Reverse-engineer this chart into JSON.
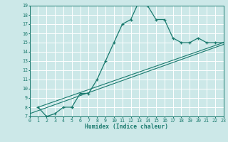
{
  "line1_x": [
    1,
    2,
    3,
    4,
    5,
    5,
    6,
    7,
    8,
    9,
    10,
    11,
    12,
    13,
    14,
    15,
    16,
    17,
    18,
    19,
    20,
    21,
    22,
    23
  ],
  "line1_y": [
    8.0,
    7.0,
    7.3,
    8.0,
    8.0,
    8.0,
    9.5,
    9.5,
    11.0,
    13.0,
    15.0,
    17.0,
    17.5,
    19.5,
    19.0,
    17.5,
    17.5,
    15.5,
    15.0,
    15.0,
    15.5,
    15.0,
    15.0,
    15.0
  ],
  "line2_x": [
    1,
    23
  ],
  "line2_y": [
    8.0,
    15.0
  ],
  "line3_x": [
    0,
    23
  ],
  "line3_y": [
    7.3,
    14.8
  ],
  "line_color": "#1a7a6e",
  "bg_color": "#cce8e8",
  "grid_color": "#ffffff",
  "xlabel": "Humidex (Indice chaleur)",
  "xlim": [
    0,
    23
  ],
  "ylim": [
    7,
    19
  ],
  "xticks": [
    0,
    1,
    2,
    3,
    4,
    5,
    6,
    7,
    8,
    9,
    10,
    11,
    12,
    13,
    14,
    15,
    16,
    17,
    18,
    19,
    20,
    21,
    22,
    23
  ],
  "xtick_labels": [
    "0",
    "1",
    "2",
    "3",
    "4",
    "5",
    "6",
    "7",
    "8",
    "9",
    "10",
    "11",
    "12",
    "13",
    "14",
    "15",
    "16",
    "17",
    "18",
    "19",
    "20",
    "21",
    "22",
    "23"
  ],
  "yticks": [
    7,
    8,
    9,
    10,
    11,
    12,
    13,
    14,
    15,
    16,
    17,
    18,
    19
  ],
  "ytick_labels": [
    "7",
    "8",
    "9",
    "10",
    "11",
    "12",
    "13",
    "14",
    "15",
    "16",
    "17",
    "18",
    "19"
  ]
}
